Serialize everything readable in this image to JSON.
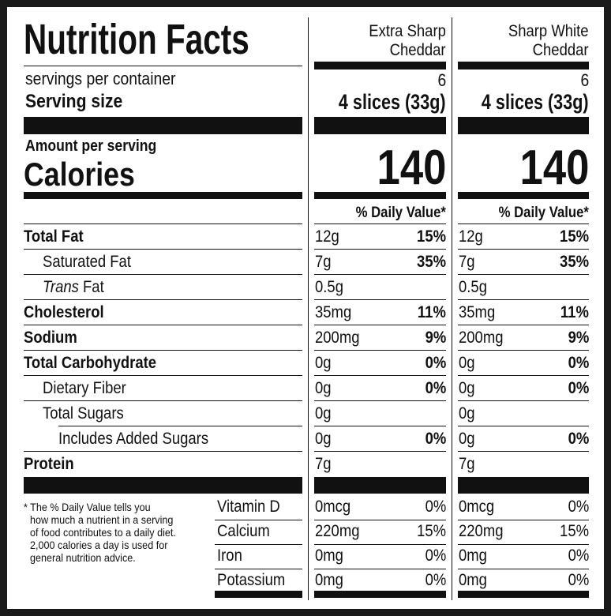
{
  "title": "Nutrition Facts",
  "servings_label": "servings per container",
  "serving_size_label": "Serving size",
  "amount_per_serving": "Amount per serving",
  "calories_label": "Calories",
  "nutrients": [
    {
      "label": "Total Fat"
    },
    {
      "label": "Saturated Fat"
    },
    {
      "label_italic": "Trans",
      "label": "Fat"
    },
    {
      "label": "Cholesterol"
    },
    {
      "label": "Sodium"
    },
    {
      "label": "Total Carbohydrate"
    },
    {
      "label": "Dietary Fiber"
    },
    {
      "label": "Total Sugars"
    },
    {
      "label": "Includes Added Sugars"
    },
    {
      "label": "Protein"
    }
  ],
  "vitamins": [
    "Vitamin D",
    "Calcium",
    "Iron",
    "Potassium"
  ],
  "footnote": [
    "* The % Daily Value tells you",
    "how much a nutrient in a serving",
    "of food contributes to a daily diet.",
    "2,000 calories a day is used for",
    "general nutrition advice."
  ],
  "products": [
    {
      "name_lines": [
        "Extra Sharp",
        "Cheddar"
      ],
      "servings_per_container": "6",
      "serving_size": "4 slices (33g)",
      "calories": "140",
      "daily_value_header": "% Daily Value*",
      "nutrients": [
        {
          "amount": "12g",
          "dv": "15%"
        },
        {
          "amount": "7g",
          "dv": "35%"
        },
        {
          "amount": "0.5g"
        },
        {
          "amount": "35mg",
          "dv": "11%"
        },
        {
          "amount": "200mg",
          "dv": "9%"
        },
        {
          "amount": "0g",
          "dv": "0%"
        },
        {
          "amount": "0g",
          "dv": "0%"
        },
        {
          "amount": "0g"
        },
        {
          "amount": "0g",
          "dv": "0%"
        },
        {
          "amount": "7g"
        }
      ],
      "vitamins": [
        {
          "amount": "0mcg",
          "dv": "0%"
        },
        {
          "amount": "220mg",
          "dv": "15%"
        },
        {
          "amount": "0mg",
          "dv": "0%"
        },
        {
          "amount": "0mg",
          "dv": "0%"
        }
      ]
    },
    {
      "name_lines": [
        "Sharp White",
        "Cheddar"
      ],
      "servings_per_container": "6",
      "serving_size": "4 slices (33g)",
      "calories": "140",
      "daily_value_header": "% Daily Value*",
      "nutrients": [
        {
          "amount": "12g",
          "dv": "15%"
        },
        {
          "amount": "7g",
          "dv": "35%"
        },
        {
          "amount": "0.5g"
        },
        {
          "amount": "35mg",
          "dv": "11%"
        },
        {
          "amount": "200mg",
          "dv": "9%"
        },
        {
          "amount": "0g",
          "dv": "0%"
        },
        {
          "amount": "0g",
          "dv": "0%"
        },
        {
          "amount": "0g"
        },
        {
          "amount": "0g",
          "dv": "0%"
        },
        {
          "amount": "7g"
        }
      ],
      "vitamins": [
        {
          "amount": "0mcg",
          "dv": "0%"
        },
        {
          "amount": "220mg",
          "dv": "15%"
        },
        {
          "amount": "0mg",
          "dv": "0%"
        },
        {
          "amount": "0mg",
          "dv": "0%"
        }
      ]
    }
  ]
}
